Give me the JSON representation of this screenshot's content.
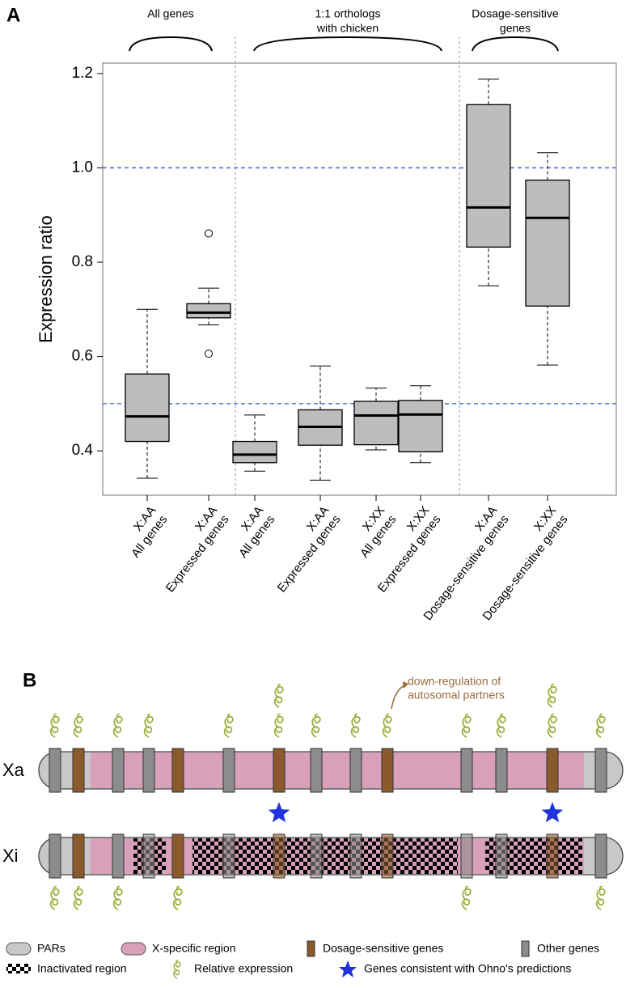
{
  "panel_a": {
    "label": "A",
    "chart_data": {
      "type": "box",
      "ylabel": "Expression ratio",
      "ylim": [
        0.306,
        1.222
      ],
      "yticks": [
        0.4,
        0.6,
        0.8,
        {
          "value": 1,
          "label": "1.0"
        },
        1.2
      ],
      "reference_lines": [
        1,
        0.5
      ],
      "reference_color": "#3355dd",
      "box_color": "#bdbdbd",
      "section_headers": [
        [
          "All genes"
        ],
        [
          "1:1 orthologs",
          "with chicken"
        ],
        [
          "Dosage-sensitive",
          "genes"
        ]
      ],
      "categories": [
        [
          "X:AA",
          "All genes"
        ],
        [
          "X:AA",
          "Expressed genes"
        ],
        [
          "X:AA",
          "All genes"
        ],
        [
          "X:AA",
          "Expressed genes"
        ],
        [
          "X:XX",
          "All genes"
        ],
        [
          "X:XX",
          "Expressed genes"
        ],
        [
          "X:AA",
          "Dosage-sensitive genes"
        ],
        [
          "X:XX",
          "Dosage-sensitive genes"
        ]
      ],
      "boxes": [
        {
          "min": 0.342,
          "q1": 0.42,
          "median": 0.473,
          "q3": 0.563,
          "max": 0.7,
          "outliers": []
        },
        {
          "min": 0.667,
          "q1": 0.682,
          "median": 0.693,
          "q3": 0.712,
          "max": 0.745,
          "outliers": [
            0.861,
            0.606
          ]
        },
        {
          "min": 0.357,
          "q1": 0.375,
          "median": 0.392,
          "q3": 0.42,
          "max": 0.476,
          "outliers": []
        },
        {
          "min": 0.338,
          "q1": 0.412,
          "median": 0.451,
          "q3": 0.487,
          "max": 0.58,
          "outliers": []
        },
        {
          "min": 0.402,
          "q1": 0.413,
          "median": 0.475,
          "q3": 0.505,
          "max": 0.533,
          "outliers": []
        },
        {
          "min": 0.375,
          "q1": 0.398,
          "median": 0.477,
          "q3": 0.507,
          "max": 0.538,
          "outliers": []
        },
        {
          "min": 0.75,
          "q1": 0.832,
          "median": 0.916,
          "q3": 1.134,
          "max": 1.188,
          "outliers": []
        },
        {
          "min": 0.582,
          "q1": 0.707,
          "median": 0.894,
          "q3": 0.974,
          "max": 1.032,
          "outliers": []
        }
      ]
    }
  },
  "panel_b": {
    "label": "B",
    "annotation": [
      "down-regulation of",
      "autosomal partners"
    ],
    "rows": [
      "Xa",
      "Xi"
    ],
    "legend": [
      "PARs",
      "X-specific region",
      "Dosage-sensitive genes",
      "Other genes",
      "Inactivated region",
      "Relative expression",
      "Genes consistent with Ohno's predictions"
    ]
  }
}
